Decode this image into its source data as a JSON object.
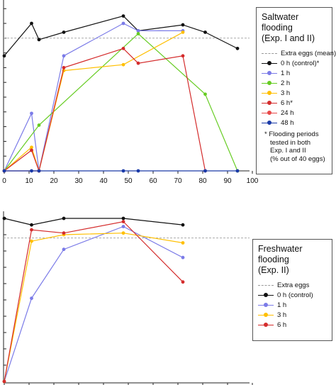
{
  "chart_data": [
    {
      "type": "line",
      "xlim": [
        0,
        100
      ],
      "ylim": [
        0,
        1.1
      ],
      "x_ticks": [
        "0",
        "10",
        "20",
        "30",
        "40",
        "50",
        "60",
        "70",
        "80",
        "90",
        "100"
      ],
      "reference_line": 0.9,
      "legend_title": [
        "Saltwater",
        "flooding",
        "(Exp. I and II)"
      ],
      "legend_reference_label": "Extra eggs (mean)",
      "legend_placement": "right",
      "legend_note": [
        "* Flooding periods",
        "tested in both",
        "Exp. I and II",
        "(% out of 40 eggs)"
      ],
      "series": [
        {
          "name": "0 h (control)*",
          "color": "#111111",
          "x": [
            0,
            11,
            14,
            24,
            48,
            54,
            72,
            81,
            94
          ],
          "y": [
            0.78,
            1.0,
            0.89,
            0.94,
            1.05,
            0.95,
            0.99,
            0.94,
            0.83
          ]
        },
        {
          "name": "1 h",
          "color": "#7b7be8",
          "x": [
            0,
            11,
            14,
            24,
            48,
            54,
            72
          ],
          "y": [
            0.0,
            0.39,
            0.0,
            0.78,
            1.0,
            0.95,
            0.95
          ]
        },
        {
          "name": "2 h",
          "color": "#66cc22",
          "x": [
            0,
            14,
            54,
            81,
            94
          ],
          "y": [
            0.0,
            0.31,
            0.93,
            0.52,
            0.0
          ]
        },
        {
          "name": "3 h",
          "color": "#ffbf00",
          "x": [
            0,
            11,
            14,
            24,
            48,
            72
          ],
          "y": [
            0.0,
            0.16,
            0.0,
            0.68,
            0.72,
            0.94
          ]
        },
        {
          "name": "6 h*",
          "color": "#d42c2c",
          "x": [
            0,
            11,
            14,
            24,
            48,
            54,
            72,
            81
          ],
          "y": [
            0.0,
            0.14,
            0.0,
            0.7,
            0.83,
            0.73,
            0.78,
            0.0
          ]
        },
        {
          "name": "24 h",
          "color": "#e84848",
          "x": [
            0,
            14
          ],
          "y": [
            0.0,
            0.0
          ]
        },
        {
          "name": "48 h",
          "color": "#1a3aa8",
          "x": [
            0,
            11,
            14,
            48,
            54,
            81,
            94
          ],
          "y": [
            0.0,
            0.0,
            0.0,
            0.0,
            0.0,
            0.0,
            0.0
          ]
        }
      ]
    },
    {
      "type": "line",
      "xlim": [
        0,
        100
      ],
      "ylim": [
        0,
        1.1
      ],
      "reference_line": 0.88,
      "legend_title": [
        "Freshwater",
        "flooding",
        "(Exp. II)"
      ],
      "legend_reference_label": "Extra eggs",
      "legend_placement": "right",
      "series": [
        {
          "name": "0 h (control)",
          "color": "#111111",
          "x": [
            0,
            11,
            24,
            48,
            72
          ],
          "y": [
            1.0,
            0.96,
            1.0,
            1.0,
            0.96
          ]
        },
        {
          "name": "1 h",
          "color": "#7b7be8",
          "x": [
            0,
            11,
            24,
            48,
            72
          ],
          "y": [
            0.0,
            0.51,
            0.81,
            0.95,
            0.76
          ]
        },
        {
          "name": "3 h",
          "color": "#ffbf00",
          "x": [
            0,
            11,
            24,
            48,
            72
          ],
          "y": [
            0.0,
            0.86,
            0.9,
            0.91,
            0.85
          ]
        },
        {
          "name": "6 h",
          "color": "#d42c2c",
          "x": [
            0,
            11,
            24,
            48,
            72
          ],
          "y": [
            0.0,
            0.93,
            0.91,
            0.98,
            0.61
          ]
        }
      ]
    }
  ]
}
